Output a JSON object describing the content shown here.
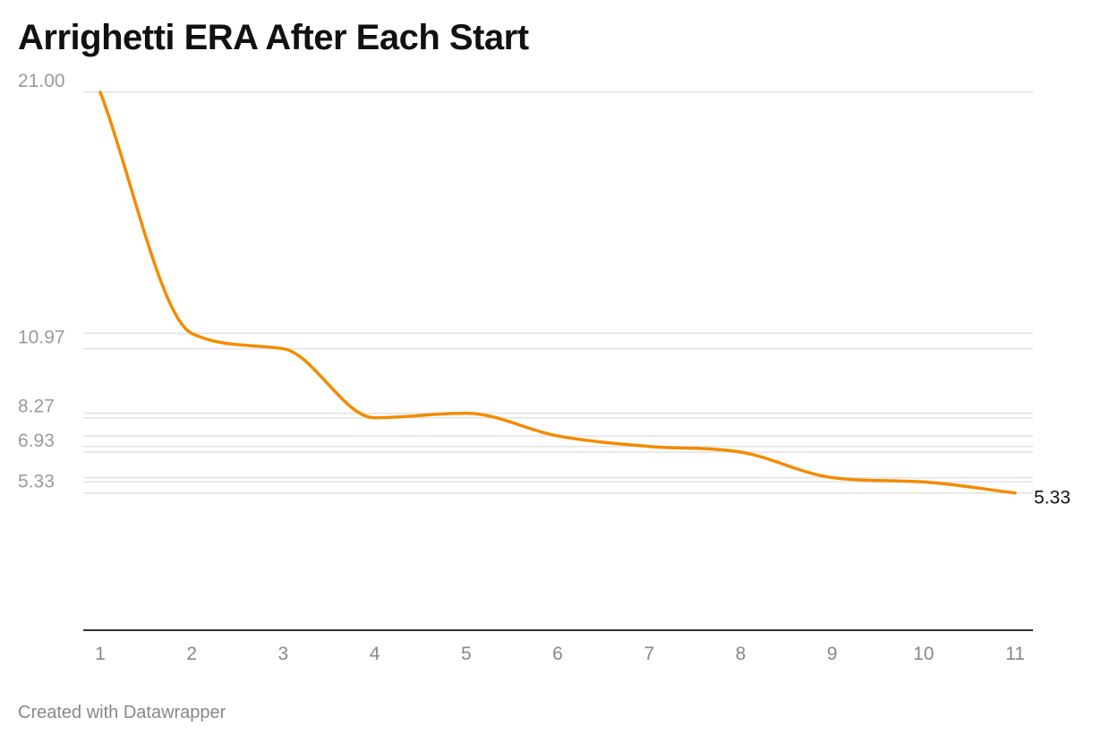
{
  "title": "Arrighetti ERA After Each Start",
  "footer": "Created with Datawrapper",
  "colors": {
    "line": "#f28c00",
    "grid": "#e2e2e2",
    "axis": "#333333"
  },
  "chart_data": {
    "type": "line",
    "title": "Arrighetti ERA After Each Start",
    "x": [
      1,
      2,
      3,
      4,
      5,
      6,
      7,
      8,
      9,
      10,
      11
    ],
    "series": [
      {
        "values": [
          21.0,
          11.57,
          10.97,
          8.27,
          8.45,
          7.56,
          7.15,
          6.93,
          5.93,
          5.76,
          5.33
        ]
      }
    ],
    "y_tick_labels": [
      21.0,
      10.97,
      8.27,
      6.93,
      5.33
    ],
    "y_gridlines": [
      21.0,
      11.57,
      10.97,
      8.45,
      8.27,
      7.56,
      7.15,
      6.93,
      5.93,
      5.76,
      5.33
    ],
    "x_tick_labels": [
      "1",
      "2",
      "3",
      "4",
      "5",
      "6",
      "7",
      "8",
      "9",
      "10",
      "11"
    ],
    "end_label": "5.33",
    "ylim": [
      0,
      21.0
    ],
    "xlim": [
      1,
      11
    ],
    "grid": true,
    "legend": "none"
  }
}
